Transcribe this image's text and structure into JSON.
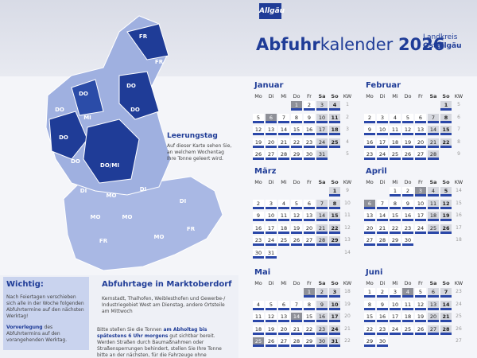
{
  "header": {
    "brand": "Allgäu",
    "title_bold": "Abfuhr",
    "title_light": "kalender",
    "year": "2026",
    "logo_line1": "Landkreis",
    "logo_line2": "Ostallgäu"
  },
  "map": {
    "labels": [
      "FR",
      "FR",
      "DO",
      "DO",
      "DO",
      "MI",
      "DO",
      "DO",
      "DO/MI",
      "DO",
      "DI",
      "MO",
      "DI",
      "MO",
      "MO",
      "FR",
      "MO",
      "DI",
      "FR"
    ]
  },
  "leerungstag": {
    "title": "Leerungstag",
    "text": "Auf dieser Karte sehen Sie, an welchem Wochentag Ihre Tonne geleert wird."
  },
  "wichtig": {
    "title": "Wichtig:",
    "text": "Nach Feiertagen verschieben sich alle in der Woche folgenden Abfuhrtermine auf den nächsten Werktag!",
    "note_bold": "Vorverlegung",
    "note": "des Abfuhrtermins auf den vorangehenden Werktag."
  },
  "marktoberdorf": {
    "title": "Abfuhrtage in Marktoberdorf",
    "text": "Kernstadt, Thalhofen, Weiblesthofen und Gewerbe-/ Industriegebiet West am Dienstag, andere Ortsteile am Mittwoch",
    "hint_a": "Bitte stellen Sie die Tonnen",
    "hint_b": "am Abholtag bis spätestens 6 Uhr morgens",
    "hint_c": "gut sichtbar bereit. Werden Straßen durch Baumaßnahmen oder Straßensperrungen behindert, stellen Sie Ihre Tonne bitte an der nächsten, für die Fahrzeuge ohne Schwierigkeiten erreichbaren, durch-"
  },
  "calendar": {
    "weekdays": [
      "Mo",
      "Di",
      "Mi",
      "Do",
      "Fr",
      "Sa",
      "So",
      "KW"
    ],
    "months": [
      {
        "name": "Januar",
        "holidays": [
          1,
          6
        ],
        "weeks": [
          {
            "days": [
              null,
              null,
              null,
              1,
              2,
              3,
              4
            ],
            "kw": 1
          },
          {
            "days": [
              5,
              6,
              7,
              8,
              9,
              10,
              11
            ],
            "kw": 2
          },
          {
            "days": [
              12,
              13,
              14,
              15,
              16,
              17,
              18
            ],
            "kw": 3
          },
          {
            "days": [
              19,
              20,
              21,
              22,
              23,
              24,
              25
            ],
            "kw": 4
          },
          {
            "days": [
              26,
              27,
              28,
              29,
              30,
              31,
              null
            ],
            "kw": 5
          }
        ]
      },
      {
        "name": "Februar",
        "holidays": [],
        "weeks": [
          {
            "days": [
              null,
              null,
              null,
              null,
              null,
              null,
              1
            ],
            "kw": 5
          },
          {
            "days": [
              2,
              3,
              4,
              5,
              6,
              7,
              8
            ],
            "kw": 6
          },
          {
            "days": [
              9,
              10,
              11,
              12,
              13,
              14,
              15
            ],
            "kw": 7
          },
          {
            "days": [
              16,
              17,
              18,
              19,
              20,
              21,
              22
            ],
            "kw": 8
          },
          {
            "days": [
              23,
              24,
              25,
              26,
              27,
              28,
              null
            ],
            "kw": 9
          }
        ]
      },
      {
        "name": "März",
        "holidays": [],
        "weeks": [
          {
            "days": [
              null,
              null,
              null,
              null,
              null,
              null,
              1
            ],
            "kw": 9
          },
          {
            "days": [
              2,
              3,
              4,
              5,
              6,
              7,
              8
            ],
            "kw": 10
          },
          {
            "days": [
              9,
              10,
              11,
              12,
              13,
              14,
              15
            ],
            "kw": 11
          },
          {
            "days": [
              16,
              17,
              18,
              19,
              20,
              21,
              22
            ],
            "kw": 12
          },
          {
            "days": [
              23,
              24,
              25,
              26,
              27,
              28,
              29
            ],
            "kw": 13
          },
          {
            "days": [
              30,
              31,
              null,
              null,
              null,
              null,
              null
            ],
            "kw": 14
          }
        ]
      },
      {
        "name": "April",
        "holidays": [
          3,
          6
        ],
        "weeks": [
          {
            "days": [
              null,
              null,
              1,
              2,
              3,
              4,
              5
            ],
            "kw": 14
          },
          {
            "days": [
              6,
              7,
              8,
              9,
              10,
              11,
              12
            ],
            "kw": 15
          },
          {
            "days": [
              13,
              14,
              15,
              16,
              17,
              18,
              19
            ],
            "kw": 16
          },
          {
            "days": [
              20,
              21,
              22,
              23,
              24,
              25,
              26
            ],
            "kw": 17
          },
          {
            "days": [
              27,
              28,
              29,
              30,
              null,
              null,
              null
            ],
            "kw": 18
          }
        ]
      },
      {
        "name": "Mai",
        "holidays": [
          1,
          14,
          25
        ],
        "weeks": [
          {
            "days": [
              null,
              null,
              null,
              null,
              1,
              2,
              3
            ],
            "kw": 18
          },
          {
            "days": [
              4,
              5,
              6,
              7,
              8,
              9,
              10
            ],
            "kw": 19
          },
          {
            "days": [
              11,
              12,
              13,
              14,
              15,
              16,
              17
            ],
            "kw": 20
          },
          {
            "days": [
              18,
              19,
              20,
              21,
              22,
              23,
              24
            ],
            "kw": 21
          },
          {
            "days": [
              25,
              26,
              27,
              28,
              29,
              30,
              31
            ],
            "kw": 22
          }
        ]
      },
      {
        "name": "Juni",
        "holidays": [
          4
        ],
        "weeks": [
          {
            "days": [
              1,
              2,
              3,
              4,
              5,
              6,
              7
            ],
            "kw": 23
          },
          {
            "days": [
              8,
              9,
              10,
              11,
              12,
              13,
              14
            ],
            "kw": 24
          },
          {
            "days": [
              15,
              16,
              17,
              18,
              19,
              20,
              21
            ],
            "kw": 25
          },
          {
            "days": [
              22,
              23,
              24,
              25,
              26,
              27,
              28
            ],
            "kw": 26
          },
          {
            "days": [
              29,
              30,
              null,
              null,
              null,
              null,
              null
            ],
            "kw": 27
          }
        ]
      }
    ]
  }
}
